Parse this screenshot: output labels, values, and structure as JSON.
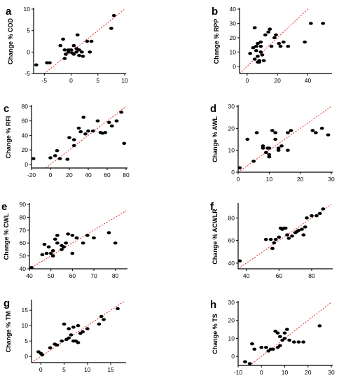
{
  "colors": {
    "points": "#000000",
    "identity_line": "#e0312b",
    "axes": "#000000"
  },
  "chart_data": [
    {
      "type": "scatter",
      "panel": "a",
      "ylabel": "Change % COD",
      "xlim": [
        -7,
        10
      ],
      "ylim": [
        -5,
        10
      ],
      "xticks": [
        -5,
        0,
        5,
        10
      ],
      "yticks": [
        -5,
        0,
        5,
        10
      ],
      "identity_line": true,
      "points": [
        [
          -6.5,
          -3
        ],
        [
          -4.5,
          -2.5
        ],
        [
          -4,
          -2.5
        ],
        [
          -2,
          1.5
        ],
        [
          -1.5,
          3
        ],
        [
          -1.2,
          -1.5
        ],
        [
          -1.2,
          0.5
        ],
        [
          -1,
          -0.5
        ],
        [
          -0.5,
          0
        ],
        [
          0,
          0.5
        ],
        [
          0.2,
          -0.2
        ],
        [
          0.5,
          1.5
        ],
        [
          1,
          0.8
        ],
        [
          1,
          0
        ],
        [
          1.2,
          4
        ],
        [
          1.5,
          0.5
        ],
        [
          2,
          0
        ],
        [
          2.2,
          -1
        ],
        [
          3,
          2.5
        ],
        [
          3.5,
          0
        ],
        [
          3.8,
          2.5
        ],
        [
          7.5,
          5.5
        ],
        [
          8,
          8.5
        ],
        [
          -0.5,
          0.5
        ],
        [
          0.5,
          -0.5
        ],
        [
          1.5,
          -0.8
        ]
      ]
    },
    {
      "type": "scatter",
      "panel": "b",
      "ylabel": "Change % RPP",
      "xlim": [
        -5,
        55
      ],
      "ylim": [
        -5,
        40
      ],
      "xticks": [
        0,
        20,
        40
      ],
      "yticks": [
        0,
        10,
        20,
        30,
        40
      ],
      "identity_line": true,
      "points": [
        [
          2,
          9
        ],
        [
          4,
          13
        ],
        [
          5,
          5
        ],
        [
          5,
          27
        ],
        [
          6,
          14
        ],
        [
          7,
          16
        ],
        [
          7,
          7
        ],
        [
          7,
          3
        ],
        [
          8,
          3
        ],
        [
          8,
          4
        ],
        [
          9,
          14
        ],
        [
          9,
          10
        ],
        [
          10,
          8
        ],
        [
          11,
          4
        ],
        [
          12,
          22
        ],
        [
          14,
          24
        ],
        [
          15,
          26
        ],
        [
          16,
          14
        ],
        [
          18,
          20
        ],
        [
          19,
          22
        ],
        [
          21,
          16
        ],
        [
          22,
          14
        ],
        [
          24,
          17
        ],
        [
          27,
          14
        ],
        [
          38,
          17
        ],
        [
          42,
          30
        ],
        [
          50,
          30
        ],
        [
          6,
          11
        ],
        [
          9,
          17
        ]
      ]
    },
    {
      "type": "scatter",
      "panel": "c",
      "ylabel": "Change % RFI",
      "xlim": [
        -20,
        80
      ],
      "ylim": [
        -5,
        80
      ],
      "xticks": [
        -20,
        0,
        20,
        40,
        60,
        80
      ],
      "yticks": [
        0,
        20,
        40,
        60,
        80
      ],
      "identity_line": true,
      "points": [
        [
          -18,
          8
        ],
        [
          0,
          9
        ],
        [
          5,
          12
        ],
        [
          7,
          19
        ],
        [
          10,
          8
        ],
        [
          18,
          7
        ],
        [
          20,
          37
        ],
        [
          25,
          34
        ],
        [
          25,
          26
        ],
        [
          30,
          50
        ],
        [
          32,
          45
        ],
        [
          35,
          65
        ],
        [
          37,
          42
        ],
        [
          40,
          46
        ],
        [
          45,
          46
        ],
        [
          50,
          60
        ],
        [
          53,
          44
        ],
        [
          55,
          43
        ],
        [
          58,
          44
        ],
        [
          62,
          58
        ],
        [
          65,
          53
        ],
        [
          70,
          60
        ],
        [
          75,
          72
        ],
        [
          78,
          29
        ]
      ]
    },
    {
      "type": "scatter",
      "panel": "d",
      "ylabel": "Change % AWL",
      "xlim": [
        0,
        30
      ],
      "ylim": [
        0,
        30
      ],
      "xticks": [
        0,
        10,
        20,
        30
      ],
      "yticks": [
        0,
        10,
        20,
        30
      ],
      "identity_line": true,
      "points": [
        [
          0.5,
          2
        ],
        [
          3,
          15
        ],
        [
          5,
          5
        ],
        [
          6,
          18
        ],
        [
          8,
          11
        ],
        [
          8,
          12
        ],
        [
          9,
          9
        ],
        [
          9.5,
          11
        ],
        [
          10,
          7
        ],
        [
          10,
          11
        ],
        [
          10,
          8
        ],
        [
          11,
          19
        ],
        [
          12,
          15
        ],
        [
          12,
          18
        ],
        [
          13,
          11
        ],
        [
          13,
          10
        ],
        [
          14,
          12
        ],
        [
          16,
          18
        ],
        [
          16,
          10
        ],
        [
          17,
          19
        ],
        [
          24,
          19
        ],
        [
          25,
          18
        ],
        [
          27,
          20
        ],
        [
          29,
          17
        ]
      ]
    },
    {
      "type": "scatter",
      "panel": "e",
      "ylabel": "Change % CWL",
      "xlim": [
        40,
        85
      ],
      "ylim": [
        40,
        90
      ],
      "xticks": [
        40,
        50,
        60,
        70,
        80
      ],
      "yticks": [
        40,
        50,
        60,
        70,
        80,
        90
      ],
      "identity_line": true,
      "points": [
        [
          41,
          41
        ],
        [
          46,
          51
        ],
        [
          47,
          59
        ],
        [
          48,
          52
        ],
        [
          49,
          57
        ],
        [
          50,
          52
        ],
        [
          51,
          54
        ],
        [
          51,
          50
        ],
        [
          52,
          63
        ],
        [
          53,
          66
        ],
        [
          53,
          60
        ],
        [
          55,
          55
        ],
        [
          55,
          58
        ],
        [
          56,
          57
        ],
        [
          57,
          60
        ],
        [
          58,
          67
        ],
        [
          60,
          52
        ],
        [
          60,
          66
        ],
        [
          62,
          64
        ],
        [
          65,
          60
        ],
        [
          67,
          66
        ],
        [
          70,
          64
        ],
        [
          77,
          68
        ],
        [
          80,
          60
        ]
      ]
    },
    {
      "type": "scatter",
      "panel": "f",
      "ylabel": "Change % ACWLR",
      "xlim": [
        35,
        92
      ],
      "ylim": [
        35,
        92
      ],
      "xticks": [
        40,
        60,
        80
      ],
      "yticks": [
        40,
        60,
        80
      ],
      "identity_line": true,
      "points": [
        [
          36,
          42
        ],
        [
          52,
          61
        ],
        [
          55,
          61
        ],
        [
          56,
          53
        ],
        [
          57,
          58
        ],
        [
          58,
          61
        ],
        [
          60,
          63
        ],
        [
          61,
          71
        ],
        [
          62,
          70
        ],
        [
          63,
          71
        ],
        [
          64,
          71
        ],
        [
          65,
          65
        ],
        [
          66,
          62
        ],
        [
          68,
          64
        ],
        [
          70,
          67
        ],
        [
          71,
          68
        ],
        [
          72,
          69
        ],
        [
          74,
          70
        ],
        [
          75,
          65
        ],
        [
          76,
          72
        ],
        [
          77,
          80
        ],
        [
          80,
          82
        ],
        [
          83,
          82
        ],
        [
          85,
          84
        ],
        [
          87,
          88
        ]
      ]
    },
    {
      "type": "scatter",
      "panel": "g",
      "ylabel": "Change % TM",
      "xlim": [
        -2,
        18
      ],
      "ylim": [
        -2,
        18
      ],
      "xticks": [
        0,
        5,
        10,
        15
      ],
      "yticks": [
        0,
        5,
        10,
        15
      ],
      "identity_line": true,
      "points": [
        [
          -0.5,
          1.5
        ],
        [
          0,
          1
        ],
        [
          0.3,
          0.5
        ],
        [
          2,
          2.8
        ],
        [
          3,
          4
        ],
        [
          3.5,
          3.7
        ],
        [
          4.5,
          5
        ],
        [
          5,
          10.5
        ],
        [
          5.5,
          5.5
        ],
        [
          6,
          6
        ],
        [
          6,
          9
        ],
        [
          6.5,
          7
        ],
        [
          7,
          5
        ],
        [
          7.5,
          5
        ],
        [
          8,
          10
        ],
        [
          8,
          4.5
        ],
        [
          8.5,
          7.5
        ],
        [
          9,
          8
        ],
        [
          10,
          9
        ],
        [
          12.5,
          10.5
        ],
        [
          13,
          13
        ],
        [
          13.5,
          12
        ],
        [
          16.5,
          15.5
        ],
        [
          7,
          9.5
        ]
      ]
    },
    {
      "type": "scatter",
      "panel": "h",
      "ylabel": "Change % TS",
      "xlim": [
        -10,
        30
      ],
      "ylim": [
        -5,
        30
      ],
      "xticks": [
        -10,
        0,
        10,
        20,
        30
      ],
      "yticks": [
        0,
        10,
        20,
        30
      ],
      "identity_line": true,
      "points": [
        [
          -7,
          -3
        ],
        [
          -5,
          -4
        ],
        [
          -4,
          7
        ],
        [
          -3,
          4
        ],
        [
          0,
          5
        ],
        [
          2,
          5
        ],
        [
          3,
          3
        ],
        [
          4,
          4
        ],
        [
          5,
          4
        ],
        [
          6,
          14
        ],
        [
          7,
          13
        ],
        [
          7,
          5
        ],
        [
          8,
          6
        ],
        [
          8,
          11
        ],
        [
          9,
          9
        ],
        [
          10,
          10
        ],
        [
          10,
          13
        ],
        [
          11,
          15
        ],
        [
          12,
          9
        ],
        [
          14,
          8
        ],
        [
          16,
          8
        ],
        [
          18,
          8
        ],
        [
          25,
          17
        ]
      ]
    }
  ]
}
